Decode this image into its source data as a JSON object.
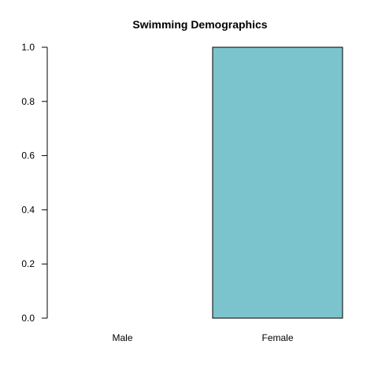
{
  "chart_data": {
    "type": "bar",
    "title": "Swimming Demographics",
    "xlabel": "",
    "ylabel": "",
    "categories": [
      "Male",
      "Female"
    ],
    "values": [
      0,
      1.0
    ],
    "ylim": [
      0,
      1.0
    ],
    "yticks": [
      0.0,
      0.2,
      0.4,
      0.6,
      0.8,
      1.0
    ],
    "ytick_labels": [
      "0.0",
      "0.2",
      "0.4",
      "0.6",
      "0.8",
      "1.0"
    ],
    "bar_color": "#7bc4cd",
    "bar_border_color": "#000000",
    "grid": false,
    "legend": "none"
  }
}
